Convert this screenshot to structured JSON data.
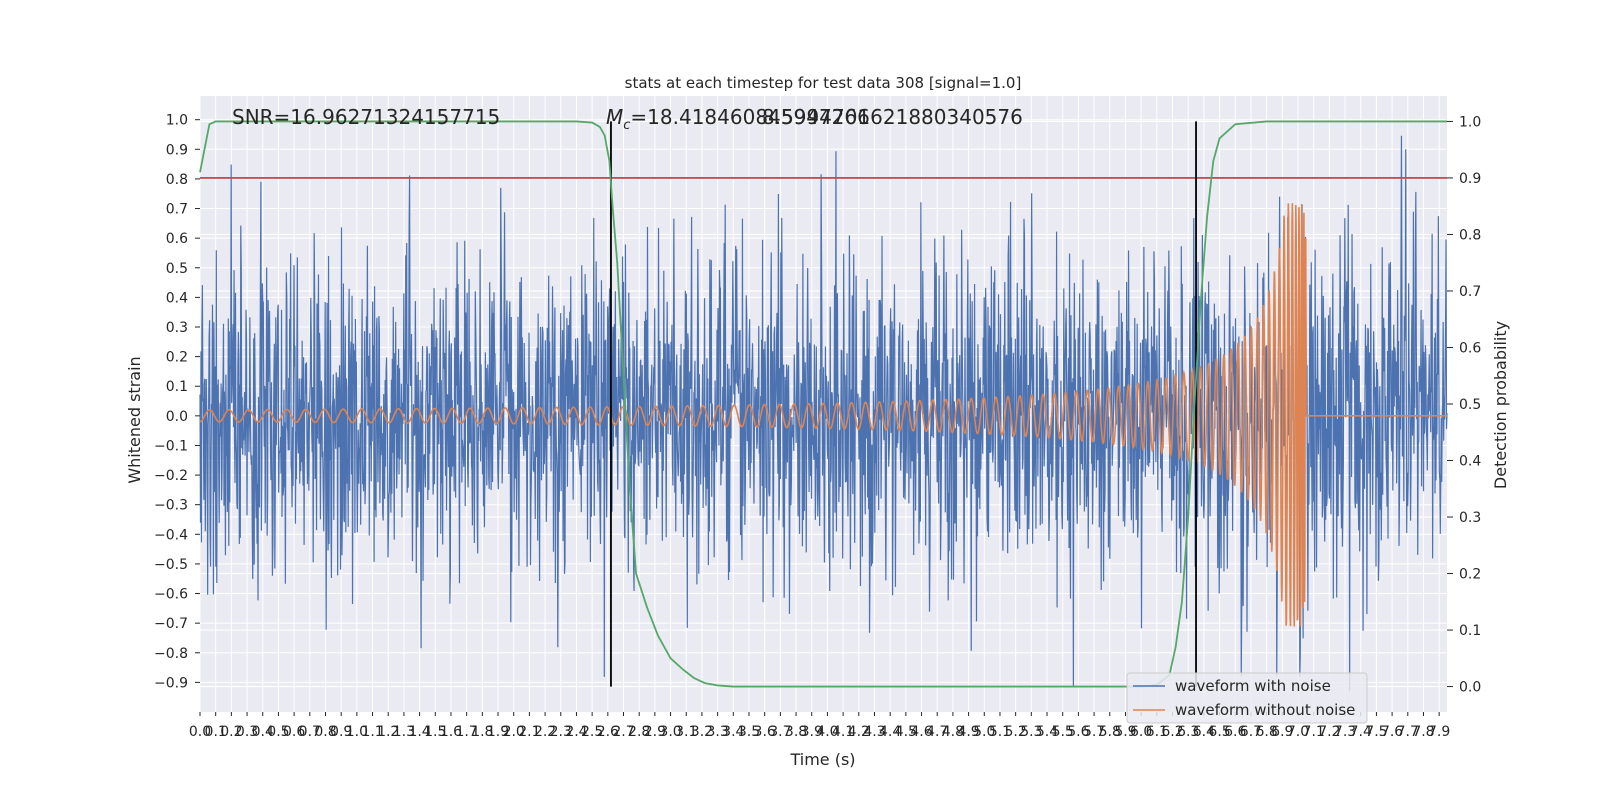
{
  "chart_data": {
    "type": "line",
    "title": "stats at each timestep for test data 308 [signal=1.0]",
    "xlabel": "Time (s)",
    "ylabel_left": "Whitened strain",
    "ylabel_right": "Detection probability",
    "annotations": {
      "snr": "SNR=16.96271324157715",
      "mc_prefix": "=18.418460845947266",
      "mc_symbol": "M",
      "mc_sub": "c",
      "overlap": "8.5994701621880340576"
    },
    "xlim": [
      0.0,
      7.95
    ],
    "ylim_left": [
      -1.0,
      1.08
    ],
    "ylim_right": [
      -0.045,
      1.045
    ],
    "x_ticks": [
      "0.0",
      "0.1",
      "0.2",
      "0.3",
      "0.4",
      "0.5",
      "0.6",
      "0.7",
      "0.8",
      "0.9",
      "1.0",
      "1.1",
      "1.2",
      "1.3",
      "1.4",
      "1.5",
      "1.6",
      "1.7",
      "1.8",
      "1.9",
      "2.0",
      "2.1",
      "2.2",
      "2.3",
      "2.4",
      "2.5",
      "2.6",
      "2.7",
      "2.8",
      "2.9",
      "3.0",
      "3.1",
      "3.2",
      "3.3",
      "3.4",
      "3.5",
      "3.6",
      "3.7",
      "3.8",
      "3.9",
      "4.0",
      "4.1",
      "4.2",
      "4.3",
      "4.4",
      "4.5",
      "4.6",
      "4.7",
      "4.8",
      "4.9",
      "5.0",
      "5.1",
      "5.2",
      "5.3",
      "5.4",
      "5.5",
      "5.6",
      "5.7",
      "5.8",
      "5.9",
      "6.0",
      "6.1",
      "6.2",
      "6.3",
      "6.4",
      "6.5",
      "6.6",
      "6.7",
      "6.8",
      "6.9",
      "7.0",
      "7.1",
      "7.2",
      "7.3",
      "7.4",
      "7.5",
      "7.6",
      "7.7",
      "7.8",
      "7.9"
    ],
    "y_ticks_left": [
      "1.0",
      "0.9",
      "0.8",
      "0.7",
      "0.6",
      "0.5",
      "0.4",
      "0.3",
      "0.2",
      "0.1",
      "0.0",
      "−0.1",
      "−0.2",
      "−0.3",
      "−0.4",
      "−0.5",
      "−0.6",
      "−0.7",
      "−0.8",
      "−0.9"
    ],
    "y_tick_values_left": [
      1.0,
      0.9,
      0.8,
      0.7,
      0.6,
      0.5,
      0.4,
      0.3,
      0.2,
      0.1,
      0.0,
      -0.1,
      -0.2,
      -0.3,
      -0.4,
      -0.5,
      -0.6,
      -0.7,
      -0.8,
      -0.9
    ],
    "y_ticks_right": [
      "1.0",
      "0.9",
      "0.8",
      "0.7",
      "0.6",
      "0.5",
      "0.4",
      "0.3",
      "0.2",
      "0.1",
      "0.0"
    ],
    "y_tick_values_right": [
      1.0,
      0.9,
      0.8,
      0.7,
      0.6,
      0.5,
      0.4,
      0.3,
      0.2,
      0.1,
      0.0
    ],
    "threshold": 0.9,
    "detection_markers_x": [
      2.62,
      6.35
    ],
    "merger_time": 7.05,
    "series": [
      {
        "name": "waveform with noise",
        "color": "#4c72b0",
        "kind": "noise",
        "noise_std": 0.27
      },
      {
        "name": "waveform without noise",
        "color": "#dd8452",
        "kind": "chirp",
        "start_amp": 0.02,
        "peak_amp_pos": 0.75,
        "peak_amp_neg": -0.68,
        "start_freq_hz": 8.0,
        "merger_time": 7.05
      },
      {
        "name": "",
        "color": "#55a868",
        "kind": "probability",
        "x": [
          0.0,
          0.06,
          0.1,
          0.2,
          0.5,
          1.0,
          1.5,
          2.0,
          2.4,
          2.5,
          2.55,
          2.58,
          2.61,
          2.63,
          2.66,
          2.7,
          2.74,
          2.78,
          2.85,
          2.92,
          3.0,
          3.08,
          3.15,
          3.22,
          3.3,
          3.4,
          3.6,
          4.0,
          5.0,
          6.0,
          6.1,
          6.18,
          6.22,
          6.26,
          6.3,
          6.34,
          6.38,
          6.42,
          6.46,
          6.5,
          6.6,
          6.8,
          7.0,
          7.5,
          7.95
        ],
        "y": [
          0.91,
          0.995,
          1.0,
          1.0,
          1.0,
          1.0,
          1.0,
          1.0,
          1.0,
          0.998,
          0.99,
          0.975,
          0.93,
          0.85,
          0.75,
          0.55,
          0.35,
          0.2,
          0.14,
          0.09,
          0.05,
          0.03,
          0.015,
          0.006,
          0.002,
          0.0,
          0.0,
          0.0,
          0.0,
          0.0,
          0.003,
          0.02,
          0.07,
          0.15,
          0.3,
          0.5,
          0.68,
          0.83,
          0.93,
          0.97,
          0.995,
          1.0,
          1.0,
          1.0,
          1.0
        ]
      }
    ],
    "grid": true,
    "legend_position": "lower-right"
  }
}
